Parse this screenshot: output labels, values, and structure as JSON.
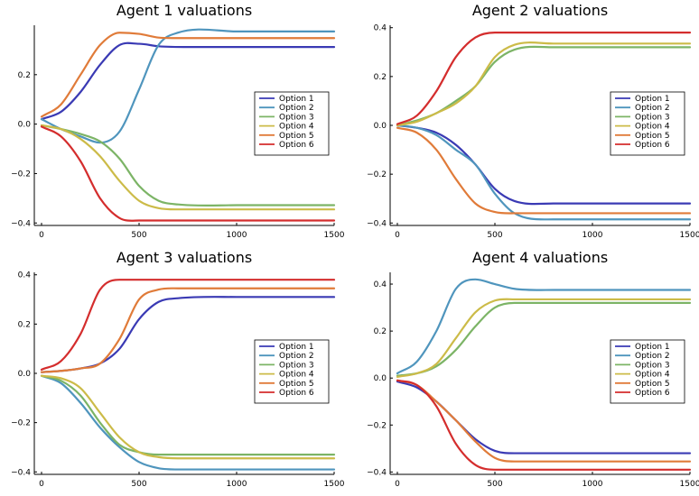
{
  "colors": {
    "Option 1": "#3a3ab4",
    "Option 2": "#4f95bd",
    "Option 3": "#7cb466",
    "Option 4": "#ccbb48",
    "Option 5": "#e07b39",
    "Option 6": "#d42d2d"
  },
  "chart_data": [
    {
      "type": "line",
      "title": "Agent 1 valuations",
      "xlim": [
        0,
        1500
      ],
      "ylim": [
        -0.41,
        0.4
      ],
      "xticks": [
        0,
        500,
        1000,
        1500
      ],
      "yticks": [
        -0.4,
        -0.2,
        0.0,
        0.2
      ],
      "xtick_labels": [
        "0",
        "500",
        "1000",
        "1500"
      ],
      "ytick_labels": [
        "−0.4",
        "−0.2",
        "0.0",
        "0.2"
      ],
      "legend": "right",
      "series": [
        {
          "name": "Option 1",
          "x": [
            0,
            100,
            200,
            300,
            400,
            500,
            600,
            800,
            1000,
            1500
          ],
          "y": [
            0.02,
            0.05,
            0.13,
            0.24,
            0.32,
            0.325,
            0.315,
            0.312,
            0.312,
            0.312
          ]
        },
        {
          "name": "Option 2",
          "x": [
            0,
            100,
            200,
            300,
            400,
            500,
            600,
            700,
            1000,
            1500
          ],
          "y": [
            0.02,
            -0.02,
            -0.05,
            -0.075,
            -0.03,
            0.14,
            0.32,
            0.37,
            0.375,
            0.375
          ]
        },
        {
          "name": "Option 3",
          "x": [
            0,
            100,
            200,
            300,
            400,
            500,
            600,
            700,
            1000,
            1500
          ],
          "y": [
            -0.005,
            -0.02,
            -0.04,
            -0.07,
            -0.14,
            -0.25,
            -0.31,
            -0.325,
            -0.328,
            -0.328
          ]
        },
        {
          "name": "Option 4",
          "x": [
            0,
            100,
            200,
            300,
            400,
            500,
            600,
            700,
            1000,
            1500
          ],
          "y": [
            -0.005,
            -0.02,
            -0.06,
            -0.13,
            -0.23,
            -0.31,
            -0.34,
            -0.345,
            -0.345,
            -0.345
          ]
        },
        {
          "name": "Option 5",
          "x": [
            0,
            100,
            200,
            300,
            400,
            500,
            600,
            700,
            1000,
            1500
          ],
          "y": [
            0.03,
            0.08,
            0.2,
            0.32,
            0.37,
            0.365,
            0.35,
            0.348,
            0.348,
            0.348
          ]
        },
        {
          "name": "Option 6",
          "x": [
            0,
            100,
            200,
            300,
            400,
            500,
            600,
            700,
            1000,
            1500
          ],
          "y": [
            -0.01,
            -0.05,
            -0.15,
            -0.3,
            -0.38,
            -0.39,
            -0.39,
            -0.39,
            -0.39,
            -0.39
          ]
        }
      ]
    },
    {
      "type": "line",
      "title": "Agent 2 valuations",
      "xlim": [
        0,
        1500
      ],
      "ylim": [
        -0.41,
        0.41
      ],
      "xticks": [
        0,
        500,
        1000,
        1500
      ],
      "yticks": [
        -0.4,
        -0.2,
        0.0,
        0.2,
        0.4
      ],
      "xtick_labels": [
        "0",
        "500",
        "1000",
        "1500"
      ],
      "ytick_labels": [
        "−0.4",
        "−0.2",
        "0.0",
        "0.2",
        "0.4"
      ],
      "legend": "right",
      "series": [
        {
          "name": "Option 1",
          "x": [
            0,
            100,
            200,
            300,
            400,
            500,
            600,
            800,
            1000,
            1500
          ],
          "y": [
            0,
            -0.01,
            -0.03,
            -0.08,
            -0.16,
            -0.26,
            -0.31,
            -0.32,
            -0.32,
            -0.32
          ]
        },
        {
          "name": "Option 2",
          "x": [
            0,
            100,
            200,
            300,
            400,
            500,
            600,
            800,
            1000,
            1500
          ],
          "y": [
            0,
            -0.01,
            -0.04,
            -0.1,
            -0.16,
            -0.28,
            -0.36,
            -0.385,
            -0.385,
            -0.385
          ]
        },
        {
          "name": "Option 3",
          "x": [
            0,
            100,
            200,
            300,
            400,
            500,
            600,
            800,
            1000,
            1500
          ],
          "y": [
            0,
            0.02,
            0.05,
            0.1,
            0.16,
            0.26,
            0.31,
            0.32,
            0.32,
            0.32
          ]
        },
        {
          "name": "Option 4",
          "x": [
            0,
            100,
            200,
            300,
            400,
            500,
            600,
            800,
            1000,
            1500
          ],
          "y": [
            0,
            0.015,
            0.05,
            0.09,
            0.16,
            0.28,
            0.33,
            0.335,
            0.335,
            0.335
          ]
        },
        {
          "name": "Option 5",
          "x": [
            0,
            100,
            200,
            300,
            400,
            500,
            600,
            800,
            1000,
            1500
          ],
          "y": [
            -0.01,
            -0.03,
            -0.1,
            -0.22,
            -0.32,
            -0.355,
            -0.36,
            -0.36,
            -0.36,
            -0.36
          ]
        },
        {
          "name": "Option 6",
          "x": [
            0,
            100,
            200,
            300,
            400,
            500,
            600,
            800,
            1000,
            1500
          ],
          "y": [
            0.005,
            0.04,
            0.14,
            0.28,
            0.36,
            0.38,
            0.38,
            0.38,
            0.38,
            0.38
          ]
        }
      ]
    },
    {
      "type": "line",
      "title": "Agent 3 valuations",
      "xlim": [
        0,
        1500
      ],
      "ylim": [
        -0.41,
        0.41
      ],
      "xticks": [
        0,
        500,
        1000,
        1500
      ],
      "yticks": [
        -0.4,
        -0.2,
        0.0,
        0.2,
        0.4
      ],
      "xtick_labels": [
        "0",
        "500",
        "1000",
        "1500"
      ],
      "ytick_labels": [
        "−0.4",
        "−0.2",
        "0.0",
        "0.2",
        "0.4"
      ],
      "legend": "right",
      "series": [
        {
          "name": "Option 1",
          "x": [
            0,
            100,
            200,
            300,
            400,
            500,
            600,
            700,
            1000,
            1500
          ],
          "y": [
            0.005,
            0.01,
            0.02,
            0.04,
            0.1,
            0.22,
            0.29,
            0.305,
            0.31,
            0.31
          ]
        },
        {
          "name": "Option 2",
          "x": [
            0,
            100,
            200,
            300,
            400,
            500,
            600,
            700,
            1000,
            1500
          ],
          "y": [
            -0.01,
            -0.04,
            -0.12,
            -0.22,
            -0.3,
            -0.36,
            -0.385,
            -0.39,
            -0.39,
            -0.39
          ]
        },
        {
          "name": "Option 3",
          "x": [
            0,
            100,
            200,
            300,
            400,
            500,
            600,
            700,
            1000,
            1500
          ],
          "y": [
            -0.01,
            -0.03,
            -0.09,
            -0.2,
            -0.29,
            -0.32,
            -0.33,
            -0.33,
            -0.33,
            -0.33
          ]
        },
        {
          "name": "Option 4",
          "x": [
            0,
            100,
            200,
            300,
            400,
            500,
            600,
            700,
            1000,
            1500
          ],
          "y": [
            -0.01,
            -0.02,
            -0.06,
            -0.16,
            -0.26,
            -0.32,
            -0.34,
            -0.345,
            -0.345,
            -0.345
          ]
        },
        {
          "name": "Option 5",
          "x": [
            0,
            100,
            200,
            300,
            400,
            500,
            600,
            700,
            1000,
            1500
          ],
          "y": [
            0.005,
            0.01,
            0.02,
            0.04,
            0.14,
            0.3,
            0.34,
            0.345,
            0.345,
            0.345
          ]
        },
        {
          "name": "Option 6",
          "x": [
            0,
            100,
            200,
            300,
            400,
            500,
            600,
            700,
            1000,
            1500
          ],
          "y": [
            0.015,
            0.05,
            0.16,
            0.34,
            0.38,
            0.38,
            0.38,
            0.38,
            0.38,
            0.38
          ]
        }
      ]
    },
    {
      "type": "line",
      "title": "Agent 4 valuations",
      "xlim": [
        0,
        1500
      ],
      "ylim": [
        -0.41,
        0.45
      ],
      "xticks": [
        0,
        500,
        1000,
        1500
      ],
      "yticks": [
        -0.4,
        -0.2,
        0.0,
        0.2,
        0.4
      ],
      "xtick_labels": [
        "0",
        "500",
        "1000",
        "1500"
      ],
      "ytick_labels": [
        "−0.4",
        "−0.2",
        "0.0",
        "0.2",
        "0.4"
      ],
      "legend": "right",
      "series": [
        {
          "name": "Option 1",
          "x": [
            0,
            100,
            200,
            300,
            400,
            500,
            600,
            800,
            1000,
            1500
          ],
          "y": [
            -0.015,
            -0.04,
            -0.1,
            -0.18,
            -0.26,
            -0.31,
            -0.32,
            -0.32,
            -0.32,
            -0.32
          ]
        },
        {
          "name": "Option 2",
          "x": [
            0,
            100,
            200,
            300,
            400,
            500,
            600,
            800,
            1000,
            1500
          ],
          "y": [
            0.02,
            0.07,
            0.2,
            0.38,
            0.42,
            0.4,
            0.38,
            0.375,
            0.375,
            0.375
          ]
        },
        {
          "name": "Option 3",
          "x": [
            0,
            100,
            200,
            300,
            400,
            500,
            600,
            800,
            1000,
            1500
          ],
          "y": [
            0.01,
            0.02,
            0.05,
            0.12,
            0.22,
            0.3,
            0.32,
            0.32,
            0.32,
            0.32
          ]
        },
        {
          "name": "Option 4",
          "x": [
            0,
            100,
            200,
            300,
            400,
            500,
            600,
            800,
            1000,
            1500
          ],
          "y": [
            0.005,
            0.02,
            0.06,
            0.17,
            0.28,
            0.33,
            0.335,
            0.335,
            0.335,
            0.335
          ]
        },
        {
          "name": "Option 5",
          "x": [
            0,
            100,
            200,
            300,
            400,
            500,
            600,
            800,
            1000,
            1500
          ],
          "y": [
            -0.01,
            -0.03,
            -0.1,
            -0.18,
            -0.27,
            -0.34,
            -0.355,
            -0.355,
            -0.355,
            -0.355
          ]
        },
        {
          "name": "Option 6",
          "x": [
            0,
            100,
            200,
            300,
            400,
            500,
            600,
            800,
            1000,
            1500
          ],
          "y": [
            -0.01,
            -0.03,
            -0.12,
            -0.28,
            -0.37,
            -0.39,
            -0.39,
            -0.39,
            -0.39,
            -0.39
          ]
        }
      ]
    }
  ]
}
